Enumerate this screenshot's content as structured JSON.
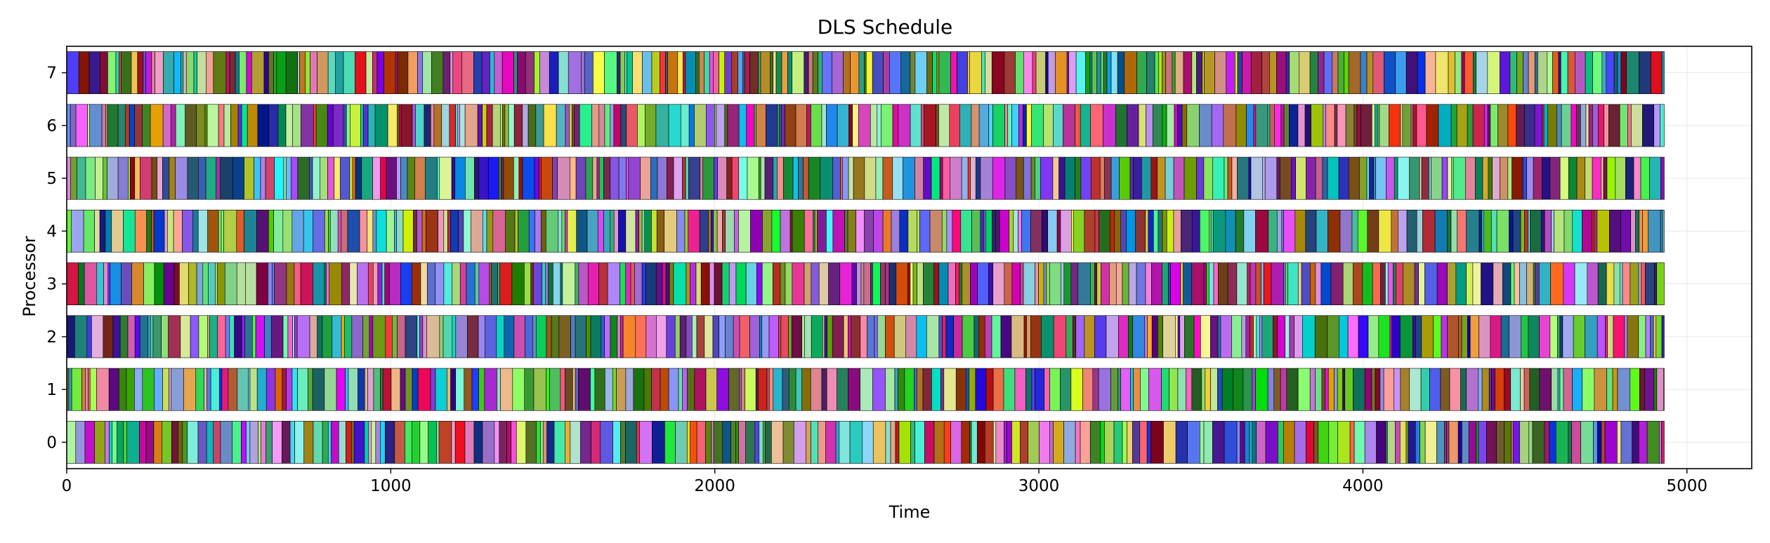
{
  "chart_data": {
    "type": "gantt",
    "title": "DLS Schedule",
    "xlabel": "Time",
    "ylabel": "Processor",
    "xlim": [
      0,
      5200
    ],
    "ylim": [
      -0.5,
      7.5
    ],
    "xticks": [
      0,
      1000,
      2000,
      3000,
      4000,
      5000
    ],
    "yticks": [
      0,
      1,
      2,
      3,
      4,
      5,
      6,
      7
    ],
    "grid": true,
    "makespan": 4930,
    "processors": [
      0,
      1,
      2,
      3,
      4,
      5,
      6,
      7
    ],
    "bar_height": 0.8,
    "task_count_per_processor_approx": 230
  }
}
